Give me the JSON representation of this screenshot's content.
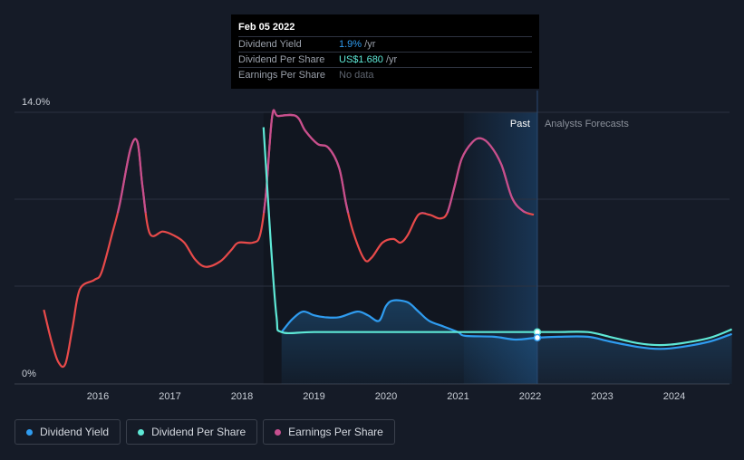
{
  "tooltip": {
    "date": "Feb 05 2022",
    "rows": [
      {
        "label": "Dividend Yield",
        "value": "1.9%",
        "unit": " /yr"
      },
      {
        "label": "Dividend Per Share",
        "value": "US$1.680",
        "unit": " /yr"
      },
      {
        "label": "Earnings Per Share",
        "value": "No data",
        "unit": ""
      }
    ]
  },
  "past_label": "Past",
  "forecast_label": "Analysts Forecasts",
  "legend": [
    {
      "label": "Dividend Yield",
      "color": "#2f9cf0"
    },
    {
      "label": "Dividend Per Share",
      "color": "#5ee8d6"
    },
    {
      "label": "Earnings Per Share",
      "color": "#c64f8f"
    }
  ],
  "chart_data": {
    "type": "line",
    "y_tick_labels": [
      "14.0%",
      "0%"
    ],
    "ylim": [
      0,
      14
    ],
    "xlim": [
      2015.0,
      2024.8
    ],
    "x_ticks": [
      2016,
      2017,
      2018,
      2019,
      2020,
      2021,
      2022,
      2023,
      2024
    ],
    "past_end": 2022.1,
    "colors": {
      "yield": "#2f9cf0",
      "dps": "#5ee8d6",
      "eps_neg": "#e84a4a",
      "eps_pos": "#c64f8f"
    },
    "series": [
      {
        "name": "Dividend Yield",
        "key": "yield",
        "points": [
          [
            2018.55,
            2.2
          ],
          [
            2018.7,
            2.9
          ],
          [
            2018.85,
            3.3
          ],
          [
            2019.0,
            3.1
          ],
          [
            2019.15,
            3.0
          ],
          [
            2019.35,
            3.0
          ],
          [
            2019.6,
            3.3
          ],
          [
            2019.75,
            3.1
          ],
          [
            2019.9,
            2.8
          ],
          [
            2020.0,
            3.6
          ],
          [
            2020.1,
            3.9
          ],
          [
            2020.3,
            3.8
          ],
          [
            2020.45,
            3.3
          ],
          [
            2020.6,
            2.8
          ],
          [
            2020.8,
            2.5
          ],
          [
            2021.0,
            2.2
          ],
          [
            2021.1,
            2.0
          ],
          [
            2021.5,
            1.95
          ],
          [
            2021.8,
            1.8
          ],
          [
            2022.1,
            1.9
          ],
          [
            2022.4,
            1.95
          ],
          [
            2022.8,
            1.95
          ],
          [
            2023.1,
            1.7
          ],
          [
            2023.5,
            1.4
          ],
          [
            2023.8,
            1.3
          ],
          [
            2024.1,
            1.4
          ],
          [
            2024.5,
            1.7
          ],
          [
            2024.8,
            2.1
          ]
        ]
      },
      {
        "name": "Dividend Per Share",
        "key": "dps",
        "points": [
          [
            2018.3,
            13.2
          ],
          [
            2018.4,
            7.0
          ],
          [
            2018.48,
            3.0
          ],
          [
            2018.55,
            2.2
          ],
          [
            2019.0,
            2.2
          ],
          [
            2020.0,
            2.2
          ],
          [
            2021.0,
            2.2
          ],
          [
            2022.1,
            2.2
          ],
          [
            2022.4,
            2.2
          ],
          [
            2022.8,
            2.2
          ],
          [
            2023.1,
            1.95
          ],
          [
            2023.5,
            1.6
          ],
          [
            2023.8,
            1.5
          ],
          [
            2024.1,
            1.6
          ],
          [
            2024.5,
            1.9
          ],
          [
            2024.8,
            2.35
          ]
        ]
      },
      {
        "name": "Earnings Per Share",
        "key": "eps",
        "points": [
          [
            2015.25,
            3.4
          ],
          [
            2015.35,
            1.8
          ],
          [
            2015.45,
            0.6
          ],
          [
            2015.55,
            0.5
          ],
          [
            2015.65,
            2.5
          ],
          [
            2015.75,
            4.5
          ],
          [
            2015.95,
            5.0
          ],
          [
            2016.05,
            5.4
          ],
          [
            2016.2,
            7.5
          ],
          [
            2016.3,
            9.0
          ],
          [
            2016.45,
            12.0
          ],
          [
            2016.55,
            12.4
          ],
          [
            2016.62,
            10.0
          ],
          [
            2016.72,
            7.5
          ],
          [
            2016.9,
            7.6
          ],
          [
            2017.05,
            7.4
          ],
          [
            2017.2,
            7.0
          ],
          [
            2017.35,
            6.1
          ],
          [
            2017.5,
            5.7
          ],
          [
            2017.7,
            6.0
          ],
          [
            2017.85,
            6.6
          ],
          [
            2017.95,
            7.0
          ],
          [
            2018.15,
            7.0
          ],
          [
            2018.25,
            7.4
          ],
          [
            2018.33,
            9.5
          ],
          [
            2018.42,
            13.8
          ],
          [
            2018.5,
            13.8
          ],
          [
            2018.75,
            13.8
          ],
          [
            2018.88,
            13.0
          ],
          [
            2019.05,
            12.3
          ],
          [
            2019.2,
            12.1
          ],
          [
            2019.35,
            11.0
          ],
          [
            2019.45,
            9.0
          ],
          [
            2019.55,
            7.5
          ],
          [
            2019.7,
            6.1
          ],
          [
            2019.8,
            6.2
          ],
          [
            2019.95,
            7.0
          ],
          [
            2020.1,
            7.2
          ],
          [
            2020.2,
            7.0
          ],
          [
            2020.3,
            7.4
          ],
          [
            2020.45,
            8.5
          ],
          [
            2020.6,
            8.5
          ],
          [
            2020.75,
            8.3
          ],
          [
            2020.85,
            8.6
          ],
          [
            2020.95,
            10.0
          ],
          [
            2021.05,
            11.5
          ],
          [
            2021.2,
            12.4
          ],
          [
            2021.32,
            12.6
          ],
          [
            2021.45,
            12.2
          ],
          [
            2021.6,
            11.2
          ],
          [
            2021.75,
            9.4
          ],
          [
            2021.9,
            8.7
          ],
          [
            2022.05,
            8.5
          ]
        ]
      }
    ]
  }
}
